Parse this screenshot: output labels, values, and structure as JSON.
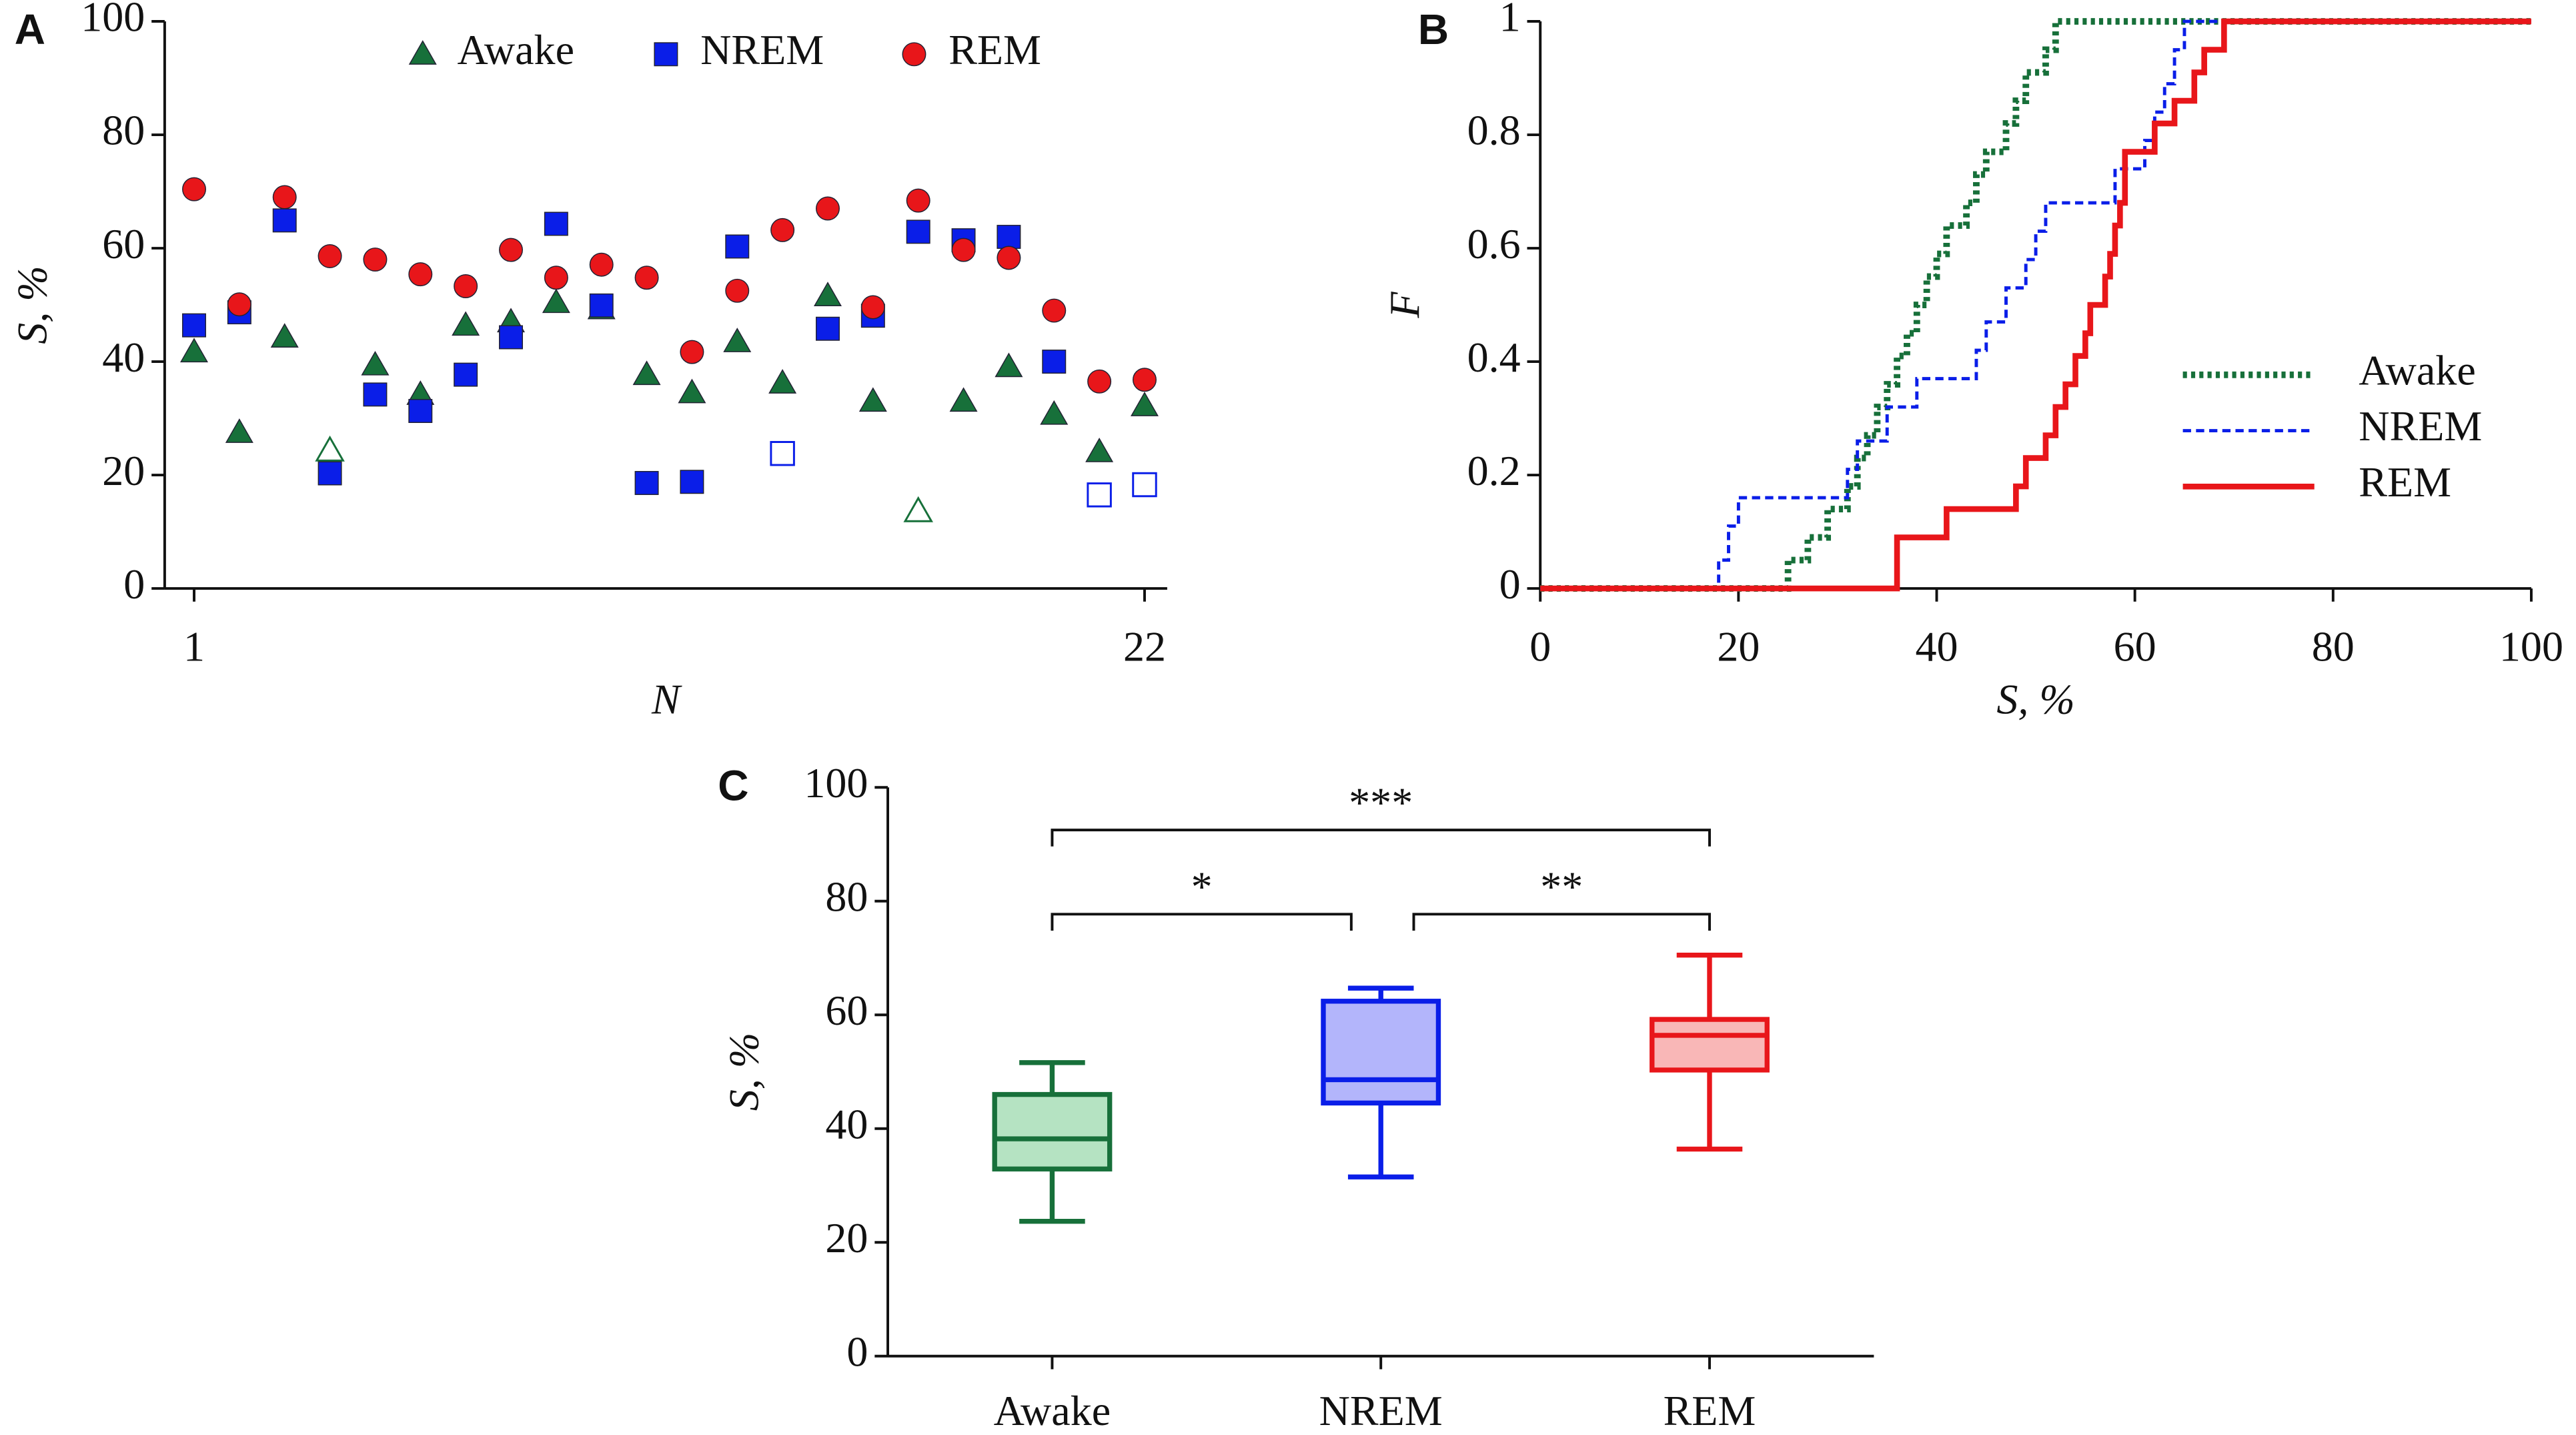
{
  "chart_data": [
    {
      "type": "scatter",
      "label": "A",
      "xlabel": "N",
      "ylabel": "S,  %",
      "x": [
        1,
        2,
        3,
        4,
        5,
        6,
        7,
        8,
        9,
        10,
        11,
        12,
        13,
        14,
        15,
        16,
        17,
        18,
        19,
        20,
        21,
        22
      ],
      "xlim": [
        0.35,
        22.5
      ],
      "xticks": [
        1,
        22
      ],
      "ylim": [
        0,
        100
      ],
      "yticks": [
        0,
        20,
        40,
        60,
        80,
        100
      ],
      "legend": "top",
      "series": [
        {
          "name": "Awake",
          "color": "#17703a",
          "marker": "triangle",
          "open_points": [
            3,
            16
          ],
          "values": [
            41.7,
            27.5,
            44.3,
            24.3,
            39.4,
            34.2,
            46.4,
            47.0,
            50.4,
            49.3,
            37.7,
            34.5,
            43.5,
            36.2,
            51.6,
            33.0,
            13.6,
            33.0,
            39.1,
            30.7,
            24.1,
            32.2
          ]
        },
        {
          "name": "NREM",
          "color": "#0a1ee8",
          "marker": "square",
          "open_points": [
            13,
            20,
            21
          ],
          "values": [
            46.4,
            48.7,
            64.9,
            20.3,
            34.2,
            31.3,
            37.7,
            44.3,
            64.3,
            49.9,
            18.6,
            18.8,
            60.3,
            23.8,
            45.8,
            48.1,
            62.9,
            61.4,
            62.0,
            40.0,
            16.5,
            18.3
          ]
        },
        {
          "name": "REM",
          "color": "#e8161a",
          "marker": "circle",
          "open_points": [],
          "values": [
            70.4,
            50.1,
            69.0,
            58.6,
            58.0,
            55.4,
            53.3,
            59.7,
            54.8,
            57.1,
            54.8,
            41.7,
            52.5,
            63.2,
            67.0,
            49.6,
            68.4,
            59.7,
            58.3,
            49.0,
            36.5,
            36.8
          ]
        }
      ]
    },
    {
      "type": "line",
      "label": "B",
      "step": "post",
      "xlabel": "S,  %",
      "ylabel": "F",
      "xlim": [
        0,
        100
      ],
      "xticks": [
        0,
        20,
        40,
        60,
        80,
        100
      ],
      "ylim": [
        0,
        1
      ],
      "yticks": [
        0,
        0.2,
        0.4,
        0.6,
        0.8,
        1
      ],
      "legend": "right",
      "series": [
        {
          "name": "Awake",
          "color": "#17703a",
          "dash": "dotted",
          "x": [
            0,
            24,
            25,
            27,
            29,
            31,
            32,
            33,
            34,
            35,
            36,
            37,
            38,
            39,
            40,
            41,
            43,
            44,
            45,
            47,
            48,
            49,
            51,
            52,
            100
          ],
          "values": [
            0,
            0,
            0.05,
            0.09,
            0.14,
            0.18,
            0.23,
            0.27,
            0.32,
            0.36,
            0.41,
            0.45,
            0.5,
            0.55,
            0.59,
            0.64,
            0.68,
            0.73,
            0.77,
            0.82,
            0.86,
            0.91,
            0.95,
            1,
            1
          ]
        },
        {
          "name": "NREM",
          "color": "#0a1ee8",
          "dash": "dashed",
          "x": [
            0,
            18,
            19,
            20,
            31,
            32,
            35,
            38,
            44,
            45,
            47,
            49,
            50,
            51,
            58,
            61,
            62,
            63,
            64,
            65,
            100
          ],
          "values": [
            0,
            0.05,
            0.11,
            0.16,
            0.21,
            0.26,
            0.32,
            0.37,
            0.42,
            0.47,
            0.53,
            0.58,
            0.63,
            0.68,
            0.74,
            0.79,
            0.84,
            0.89,
            0.95,
            1,
            1
          ]
        },
        {
          "name": "REM",
          "color": "#e8161a",
          "dash": "solid",
          "x": [
            0,
            36,
            41,
            48,
            49,
            51,
            52,
            53,
            54,
            55,
            55.5,
            57,
            57.5,
            58,
            58.5,
            59,
            62,
            64,
            66,
            67,
            69,
            100
          ],
          "values": [
            0,
            0.09,
            0.14,
            0.18,
            0.23,
            0.27,
            0.32,
            0.36,
            0.41,
            0.45,
            0.5,
            0.55,
            0.59,
            0.64,
            0.68,
            0.77,
            0.82,
            0.86,
            0.91,
            0.95,
            1,
            1
          ]
        }
      ]
    },
    {
      "type": "box",
      "label": "C",
      "ylabel": "S,  %",
      "categories": [
        "Awake",
        "NREM",
        "REM"
      ],
      "colors": [
        "#17703a",
        "#0a1ee8",
        "#e8161a"
      ],
      "fills": [
        "#b5e3c2",
        "#b3b5fb",
        "#f9b7b7"
      ],
      "min": [
        23.7,
        31.5,
        36.4
      ],
      "q1": [
        32.9,
        44.5,
        50.3
      ],
      "median": [
        38.2,
        48.6,
        56.4
      ],
      "q3": [
        46.0,
        62.4,
        59.2
      ],
      "max": [
        51.6,
        64.7,
        70.5
      ],
      "ylim": [
        0,
        100
      ],
      "yticks": [
        0,
        20,
        40,
        60,
        80,
        100
      ],
      "annotations": [
        {
          "text": "***",
          "from": 0,
          "to": 2,
          "y": 92.5
        },
        {
          "text": "*",
          "from": 0,
          "to": 1,
          "y": 77.7
        },
        {
          "text": "**",
          "from": 1,
          "to": 2,
          "y": 77.7
        }
      ]
    }
  ]
}
